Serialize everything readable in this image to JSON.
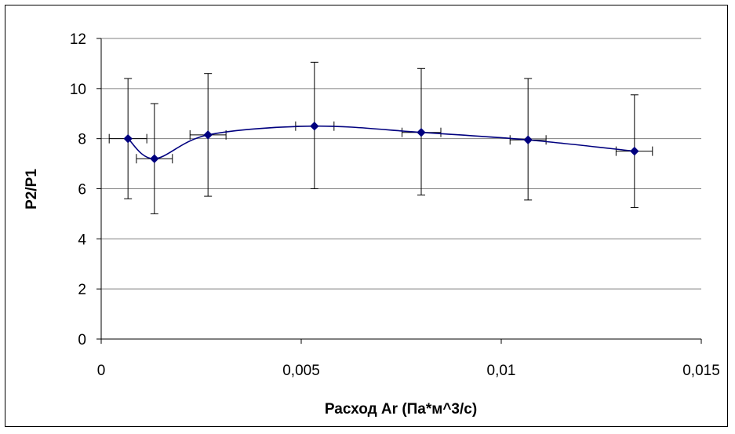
{
  "chart_data": {
    "type": "line",
    "title": "",
    "xlabel": "Расход Ar (Па*м^3/с)",
    "ylabel": "P2/P1",
    "xlim": [
      0,
      0.015
    ],
    "ylim": [
      0,
      12
    ],
    "x_ticks": [
      "0",
      "0,005",
      "0,01",
      "0,015"
    ],
    "y_ticks": [
      "0",
      "2",
      "4",
      "6",
      "8",
      "10",
      "12"
    ],
    "grid": "horizontal",
    "legend": "none",
    "line_color": "#00007f",
    "marker_color": "#00007f",
    "errorbar_color": "#000000",
    "gridline_color": "#808080",
    "series": [
      {
        "x": [
          0.00067,
          0.00133,
          0.00267,
          0.00533,
          0.008,
          0.01067,
          0.01333
        ],
        "y": [
          8.0,
          7.2,
          8.15,
          8.5,
          8.25,
          7.95,
          7.5
        ],
        "y_err_low": [
          5.6,
          5.0,
          5.7,
          6.0,
          5.75,
          5.55,
          5.25
        ],
        "y_err_high": [
          10.4,
          9.4,
          10.6,
          11.05,
          10.8,
          10.4,
          9.75
        ],
        "x_err_low": [
          0.0002,
          0.00088,
          0.00222,
          0.00486,
          0.00752,
          0.01022,
          0.01287
        ],
        "x_err_high": [
          0.00114,
          0.00178,
          0.00312,
          0.00582,
          0.00849,
          0.01112,
          0.01378
        ]
      }
    ]
  }
}
